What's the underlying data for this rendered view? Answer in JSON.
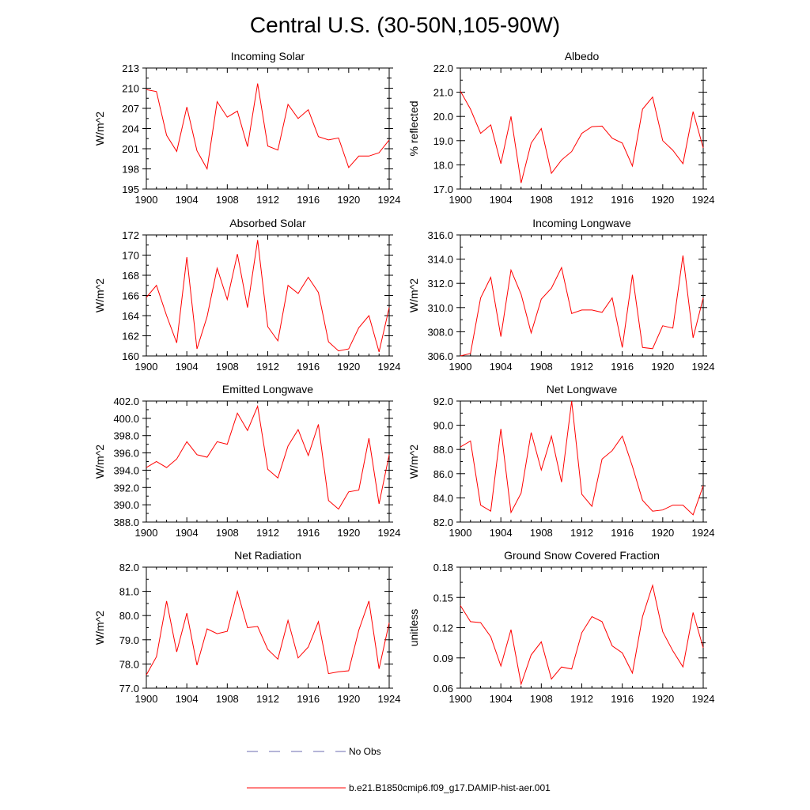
{
  "figure": {
    "title": "Central U.S. (30-50N,105-90W)",
    "legend": [
      {
        "label": "No Obs",
        "style": "dashed",
        "color": "#6b6bb0"
      },
      {
        "label": "b.e21.B1850cmip6.f09_g17.DAMIP-hist-aer.001",
        "style": "solid",
        "color": "#ff0000"
      }
    ]
  },
  "chart_data": [
    {
      "type": "line",
      "title": "Incoming Solar",
      "ylabel": "W/m^2",
      "xlim": [
        1900,
        1924
      ],
      "ylim": [
        195,
        213
      ],
      "xticks": [
        "1900",
        "1904",
        "1908",
        "1912",
        "1916",
        "1920",
        "1924"
      ],
      "yticks": [
        "195",
        "198",
        "201",
        "204",
        "207",
        "210",
        "213"
      ],
      "series": [
        {
          "color": "#ff0000",
          "x": [
            1900,
            1901,
            1902,
            1903,
            1904,
            1905,
            1906,
            1907,
            1908,
            1909,
            1910,
            1911,
            1912,
            1913,
            1914,
            1915,
            1916,
            1917,
            1918,
            1919,
            1920,
            1921,
            1922,
            1923,
            1924
          ],
          "y": [
            209.8,
            209.5,
            203.0,
            200.6,
            207.2,
            200.7,
            198.0,
            208.0,
            205.7,
            206.6,
            201.3,
            210.7,
            201.4,
            200.8,
            207.6,
            205.5,
            206.8,
            202.8,
            202.3,
            202.6,
            198.2,
            199.9,
            199.9,
            200.4,
            202.3
          ]
        }
      ]
    },
    {
      "type": "line",
      "title": "Albedo",
      "ylabel": "% reflected",
      "xlim": [
        1900,
        1924
      ],
      "ylim": [
        17.0,
        22.0
      ],
      "xticks": [
        "1900",
        "1904",
        "1908",
        "1912",
        "1916",
        "1920",
        "1924"
      ],
      "yticks": [
        "17.0",
        "18.0",
        "19.0",
        "20.0",
        "21.0",
        "22.0"
      ],
      "series": [
        {
          "color": "#ff0000",
          "x": [
            1900,
            1901,
            1902,
            1903,
            1904,
            1905,
            1906,
            1907,
            1908,
            1909,
            1910,
            1911,
            1912,
            1913,
            1914,
            1915,
            1916,
            1917,
            1918,
            1919,
            1920,
            1921,
            1922,
            1923,
            1924
          ],
          "y": [
            21.05,
            20.3,
            19.3,
            19.65,
            18.05,
            20.0,
            17.25,
            18.9,
            19.5,
            17.65,
            18.2,
            18.55,
            19.3,
            19.58,
            19.6,
            19.1,
            18.9,
            17.95,
            20.3,
            20.8,
            19.0,
            18.6,
            18.05,
            20.2,
            18.7
          ]
        }
      ]
    },
    {
      "type": "line",
      "title": "Absorbed Solar",
      "ylabel": "W/m^2",
      "xlim": [
        1900,
        1924
      ],
      "ylim": [
        160,
        172
      ],
      "xticks": [
        "1900",
        "1904",
        "1908",
        "1912",
        "1916",
        "1920",
        "1924"
      ],
      "yticks": [
        "160",
        "162",
        "164",
        "166",
        "168",
        "170",
        "172"
      ],
      "series": [
        {
          "color": "#ff0000",
          "x": [
            1900,
            1901,
            1902,
            1903,
            1904,
            1905,
            1906,
            1907,
            1908,
            1909,
            1910,
            1911,
            1912,
            1913,
            1914,
            1915,
            1916,
            1917,
            1918,
            1919,
            1920,
            1921,
            1922,
            1923,
            1924
          ],
          "y": [
            165.8,
            167.0,
            164.0,
            161.3,
            169.8,
            160.7,
            163.9,
            168.7,
            165.6,
            170.1,
            164.8,
            171.5,
            162.9,
            161.5,
            167.0,
            166.2,
            167.8,
            166.3,
            161.4,
            160.5,
            160.7,
            162.8,
            164.0,
            160.4,
            164.8
          ]
        }
      ]
    },
    {
      "type": "line",
      "title": "Incoming Longwave",
      "ylabel": "W/m^2",
      "xlim": [
        1900,
        1924
      ],
      "ylim": [
        306.0,
        316.0
      ],
      "xticks": [
        "1900",
        "1904",
        "1908",
        "1912",
        "1916",
        "1920",
        "1924"
      ],
      "yticks": [
        "306.0",
        "308.0",
        "310.0",
        "312.0",
        "314.0",
        "316.0"
      ],
      "series": [
        {
          "color": "#ff0000",
          "x": [
            1900,
            1901,
            1902,
            1903,
            1904,
            1905,
            1906,
            1907,
            1908,
            1909,
            1910,
            1911,
            1912,
            1913,
            1914,
            1915,
            1916,
            1917,
            1918,
            1919,
            1920,
            1921,
            1922,
            1923,
            1924
          ],
          "y": [
            306.0,
            306.2,
            310.8,
            312.5,
            307.6,
            313.1,
            311.1,
            307.9,
            310.7,
            311.6,
            313.3,
            309.5,
            309.8,
            309.8,
            309.6,
            310.8,
            306.7,
            312.7,
            306.7,
            306.6,
            308.5,
            308.3,
            314.3,
            307.5,
            310.8
          ]
        }
      ]
    },
    {
      "type": "line",
      "title": "Emitted Longwave",
      "ylabel": "W/m^2",
      "xlim": [
        1900,
        1924
      ],
      "ylim": [
        388.0,
        402.0
      ],
      "xticks": [
        "1900",
        "1904",
        "1908",
        "1912",
        "1916",
        "1920",
        "1924"
      ],
      "yticks": [
        "388.0",
        "390.0",
        "392.0",
        "394.0",
        "396.0",
        "398.0",
        "400.0",
        "402.0"
      ],
      "series": [
        {
          "color": "#ff0000",
          "x": [
            1900,
            1901,
            1902,
            1903,
            1904,
            1905,
            1906,
            1907,
            1908,
            1909,
            1910,
            1911,
            1912,
            1913,
            1914,
            1915,
            1916,
            1917,
            1918,
            1919,
            1920,
            1921,
            1922,
            1923,
            1924
          ],
          "y": [
            394.3,
            395.0,
            394.3,
            395.3,
            397.3,
            395.8,
            395.5,
            397.3,
            397.0,
            400.6,
            398.6,
            401.4,
            394.1,
            393.1,
            396.8,
            398.7,
            395.7,
            399.3,
            390.5,
            389.5,
            391.5,
            391.7,
            397.7,
            390.1,
            395.8
          ]
        }
      ]
    },
    {
      "type": "line",
      "title": "Net Longwave",
      "ylabel": "W/m^2",
      "xlim": [
        1900,
        1924
      ],
      "ylim": [
        82.0,
        92.0
      ],
      "xticks": [
        "1900",
        "1904",
        "1908",
        "1912",
        "1916",
        "1920",
        "1924"
      ],
      "yticks": [
        "82.0",
        "84.0",
        "86.0",
        "88.0",
        "90.0",
        "92.0"
      ],
      "series": [
        {
          "color": "#ff0000",
          "x": [
            1900,
            1901,
            1902,
            1903,
            1904,
            1905,
            1906,
            1907,
            1908,
            1909,
            1910,
            1911,
            1912,
            1913,
            1914,
            1915,
            1916,
            1917,
            1918,
            1919,
            1920,
            1921,
            1922,
            1923,
            1924
          ],
          "y": [
            88.2,
            88.7,
            83.4,
            82.9,
            89.7,
            82.8,
            84.4,
            89.4,
            86.3,
            89.1,
            85.3,
            92.0,
            84.3,
            83.3,
            87.2,
            87.9,
            89.1,
            86.6,
            83.8,
            82.9,
            83.0,
            83.4,
            83.4,
            82.6,
            85.0
          ]
        }
      ]
    },
    {
      "type": "line",
      "title": "Net Radiation",
      "ylabel": "W/m^2",
      "xlim": [
        1900,
        1924
      ],
      "ylim": [
        77.0,
        82.0
      ],
      "xticks": [
        "1900",
        "1904",
        "1908",
        "1912",
        "1916",
        "1920",
        "1924"
      ],
      "yticks": [
        "77.0",
        "78.0",
        "79.0",
        "80.0",
        "81.0",
        "82.0"
      ],
      "series": [
        {
          "color": "#ff0000",
          "x": [
            1900,
            1901,
            1902,
            1903,
            1904,
            1905,
            1906,
            1907,
            1908,
            1909,
            1910,
            1911,
            1912,
            1913,
            1914,
            1915,
            1916,
            1917,
            1918,
            1919,
            1920,
            1921,
            1922,
            1923,
            1924
          ],
          "y": [
            77.55,
            78.3,
            80.6,
            78.5,
            80.1,
            77.95,
            79.45,
            79.25,
            79.35,
            81.0,
            79.5,
            79.55,
            78.6,
            78.2,
            79.8,
            78.25,
            78.7,
            79.75,
            77.6,
            77.68,
            77.72,
            79.4,
            80.6,
            77.8,
            79.7
          ]
        }
      ]
    },
    {
      "type": "line",
      "title": "Ground Snow Covered Fraction",
      "ylabel": "unitless",
      "xlim": [
        1900,
        1924
      ],
      "ylim": [
        0.06,
        0.18
      ],
      "xticks": [
        "1900",
        "1904",
        "1908",
        "1912",
        "1916",
        "1920",
        "1924"
      ],
      "yticks": [
        "0.06",
        "0.09",
        "0.12",
        "0.15",
        "0.18"
      ],
      "series": [
        {
          "color": "#ff0000",
          "x": [
            1900,
            1901,
            1902,
            1903,
            1904,
            1905,
            1906,
            1907,
            1908,
            1909,
            1910,
            1911,
            1912,
            1913,
            1914,
            1915,
            1916,
            1917,
            1918,
            1919,
            1920,
            1921,
            1922,
            1923,
            1924
          ],
          "y": [
            0.142,
            0.126,
            0.125,
            0.111,
            0.082,
            0.118,
            0.064,
            0.093,
            0.106,
            0.069,
            0.081,
            0.079,
            0.115,
            0.131,
            0.126,
            0.102,
            0.095,
            0.075,
            0.131,
            0.162,
            0.116,
            0.097,
            0.081,
            0.135,
            0.1
          ]
        }
      ]
    }
  ]
}
